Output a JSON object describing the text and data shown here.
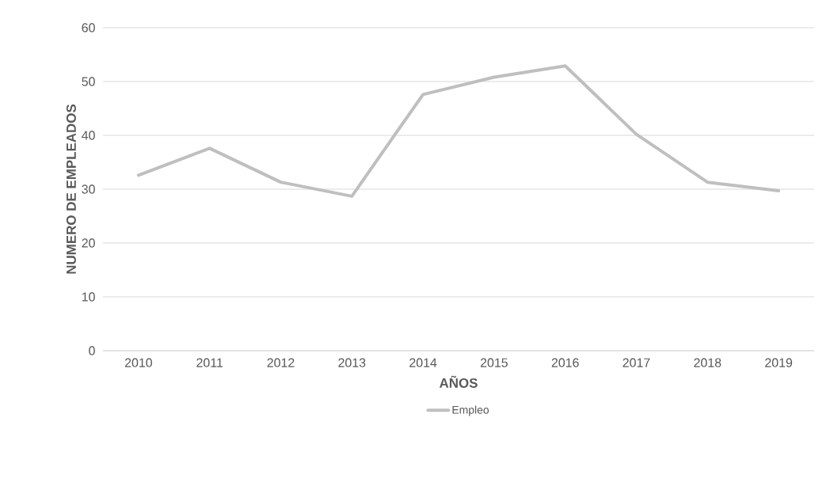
{
  "chart_data": {
    "type": "line",
    "xlabel": "AÑOS",
    "ylabel": "NUMERO DE EMPLEADOS",
    "categories": [
      "2010",
      "2011",
      "2012",
      "2013",
      "2014",
      "2015",
      "2016",
      "2017",
      "2018",
      "2019"
    ],
    "series": [
      {
        "name": "Empleo",
        "color": "#bfbfbf",
        "values": [
          32.6,
          37.6,
          31.3,
          28.7,
          47.6,
          50.8,
          52.9,
          40.2,
          31.3,
          29.7
        ]
      }
    ],
    "ylim": [
      0,
      60
    ],
    "yticks": [
      0,
      10,
      20,
      30,
      40,
      50,
      60
    ],
    "grid": "y",
    "legend": "bottom",
    "marker": "none",
    "line_style": "solid"
  }
}
